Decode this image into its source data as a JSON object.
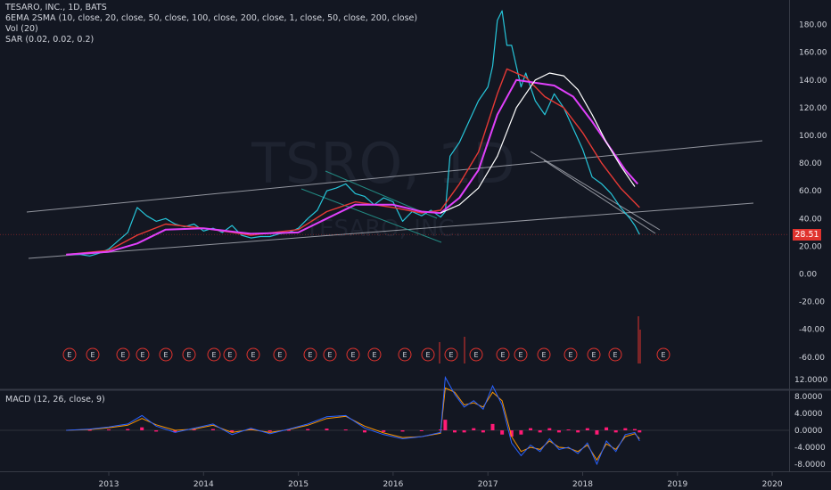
{
  "price_pane": {
    "title": "TESARO, INC., 1D, BATS",
    "indicators": [
      "6EMA 2SMA (10, close, 20, close, 50, close, 100, close, 200, close, 1, close, 50, close, 200, close)",
      "Vol (20)",
      "SAR (0.02, 0.02, 0.2)"
    ],
    "watermark_symbol": "TSRO, 1D",
    "watermark_company": "TESARO, INC.",
    "last_price_label": "28.51",
    "earnings_marker_label": "E"
  },
  "macd_pane": {
    "title": "MACD (12, 26, close, 9)"
  },
  "colors": {
    "background": "#131722",
    "price_line": "#26c6da",
    "ema_red": "#e53935",
    "ema_magenta": "#e040fb",
    "sma_white": "#ffffff",
    "trendline": "#b2b5be",
    "trendline_green": "#26a69a",
    "macd_hist": "#ff1a75",
    "macd_line": "#2962ff",
    "signal_line": "#ff9800",
    "earnings": "#e0332e"
  },
  "chart_data": [
    {
      "type": "line",
      "title": "TESARO, INC., 1D, BATS",
      "x_ticks": [
        "2013",
        "2014",
        "2015",
        "2016",
        "2017",
        "2018",
        "2019",
        "2020"
      ],
      "y_ticks": [
        "180.00",
        "160.00",
        "140.00",
        "120.00",
        "100.00",
        "80.00",
        "60.00",
        "40.00",
        "20.00",
        "0.00",
        "-20.00",
        "-40.00",
        "-60.00"
      ],
      "ylim": [
        -65,
        195
      ],
      "xlim": [
        2012.5,
        2020.15
      ],
      "series": [
        {
          "kind": "price",
          "x": [
            2012.55,
            2012.7,
            2012.8,
            2012.9,
            2013.0,
            2013.1,
            2013.2,
            2013.3,
            2013.4,
            2013.5,
            2013.6,
            2013.7,
            2013.8,
            2013.9,
            2014.0,
            2014.1,
            2014.2,
            2014.3,
            2014.4,
            2014.5,
            2014.6,
            2014.7,
            2014.8,
            2014.9,
            2015.0,
            2015.1,
            2015.2,
            2015.3,
            2015.4,
            2015.5,
            2015.6,
            2015.7,
            2015.8,
            2015.9,
            2016.0,
            2016.1,
            2016.2,
            2016.3,
            2016.4,
            2016.5,
            2016.55,
            2016.6,
            2016.7,
            2016.8,
            2016.9,
            2017.0,
            2017.05,
            2017.1,
            2017.15,
            2017.2,
            2017.25,
            2017.3,
            2017.35,
            2017.4,
            2017.5,
            2017.6,
            2017.7,
            2017.8,
            2017.9,
            2018.0,
            2018.1,
            2018.2,
            2018.3,
            2018.4,
            2018.5,
            2018.55,
            2018.6
          ],
          "y": [
            14,
            14,
            13,
            15,
            18,
            24,
            30,
            48,
            42,
            38,
            40,
            36,
            34,
            36,
            31,
            33,
            30,
            35,
            28,
            26,
            27,
            27,
            29,
            30,
            33,
            40,
            46,
            60,
            62,
            65,
            58,
            56,
            50,
            55,
            52,
            38,
            45,
            42,
            46,
            41,
            45,
            85,
            95,
            110,
            125,
            135,
            150,
            183,
            190,
            165,
            165,
            150,
            135,
            145,
            125,
            115,
            130,
            120,
            105,
            90,
            70,
            65,
            58,
            48,
            40,
            35,
            28.5
          ]
        },
        {
          "kind": "ema_red",
          "x": [
            2012.55,
            2013.0,
            2013.3,
            2013.6,
            2014.0,
            2014.5,
            2015.0,
            2015.3,
            2015.6,
            2016.0,
            2016.3,
            2016.5,
            2016.7,
            2016.9,
            2017.1,
            2017.2,
            2017.4,
            2017.6,
            2017.8,
            2018.0,
            2018.2,
            2018.4,
            2018.6
          ],
          "y": [
            14,
            17,
            28,
            36,
            33,
            28,
            32,
            45,
            52,
            48,
            44,
            46,
            65,
            88,
            130,
            148,
            142,
            128,
            120,
            102,
            80,
            62,
            48
          ]
        },
        {
          "kind": "ema_magenta",
          "x": [
            2012.55,
            2013.0,
            2013.3,
            2013.6,
            2014.0,
            2014.5,
            2015.0,
            2015.3,
            2015.6,
            2016.0,
            2016.3,
            2016.5,
            2016.7,
            2016.9,
            2017.1,
            2017.3,
            2017.5,
            2017.7,
            2017.9,
            2018.1,
            2018.3,
            2018.45,
            2018.58
          ],
          "y": [
            14,
            16,
            22,
            32,
            33,
            29,
            30,
            40,
            50,
            50,
            45,
            44,
            55,
            75,
            115,
            140,
            138,
            136,
            128,
            110,
            90,
            75,
            65
          ]
        },
        {
          "kind": "sma_white",
          "x": [
            2016.5,
            2016.7,
            2016.9,
            2017.1,
            2017.3,
            2017.5,
            2017.65,
            2017.8,
            2017.95,
            2018.1,
            2018.25,
            2018.4,
            2018.55
          ],
          "y": [
            44,
            50,
            62,
            85,
            120,
            140,
            145,
            143,
            133,
            115,
            95,
            78,
            63
          ]
        }
      ]
    },
    {
      "type": "bar",
      "title": "MACD (12, 26, close, 9)",
      "y_ticks": [
        "12.0000",
        "8.0000",
        "4.0000",
        "0.0000",
        "-4.0000",
        "-8.0000"
      ],
      "ylim": [
        -9.5,
        13
      ],
      "series": [
        {
          "kind": "macd_line",
          "x": [
            2012.55,
            2012.8,
            2013.0,
            2013.2,
            2013.35,
            2013.5,
            2013.7,
            2013.9,
            2014.1,
            2014.3,
            2014.5,
            2014.7,
            2014.9,
            2015.1,
            2015.3,
            2015.5,
            2015.7,
            2015.9,
            2016.1,
            2016.3,
            2016.5,
            2016.55,
            2016.65,
            2016.75,
            2016.85,
            2016.95,
            2017.05,
            2017.15,
            2017.25,
            2017.35,
            2017.45,
            2017.55,
            2017.65,
            2017.75,
            2017.85,
            2017.95,
            2018.05,
            2018.15,
            2018.25,
            2018.35,
            2018.45,
            2018.55,
            2018.6
          ],
          "y": [
            0,
            0.3,
            0.8,
            1.5,
            3.5,
            1.0,
            -0.5,
            0.5,
            1.5,
            -1.0,
            0.5,
            -0.8,
            0.3,
            1.5,
            3.2,
            3.5,
            0.5,
            -1.0,
            -2.0,
            -1.5,
            -0.5,
            12.5,
            8.5,
            5.5,
            7.0,
            5.0,
            10.5,
            6.0,
            -3.0,
            -6.0,
            -3.5,
            -5.0,
            -2.0,
            -4.5,
            -4.0,
            -5.5,
            -3.0,
            -8.0,
            -2.5,
            -5.0,
            -1.0,
            -0.5,
            -2.5
          ]
        },
        {
          "kind": "signal_line",
          "x": [
            2012.55,
            2012.8,
            2013.0,
            2013.2,
            2013.35,
            2013.5,
            2013.7,
            2013.9,
            2014.1,
            2014.3,
            2014.5,
            2014.7,
            2014.9,
            2015.1,
            2015.3,
            2015.5,
            2015.7,
            2015.9,
            2016.1,
            2016.3,
            2016.5,
            2016.55,
            2016.65,
            2016.75,
            2016.85,
            2016.95,
            2017.05,
            2017.15,
            2017.25,
            2017.35,
            2017.45,
            2017.55,
            2017.65,
            2017.75,
            2017.85,
            2017.95,
            2018.05,
            2018.15,
            2018.25,
            2018.35,
            2018.45,
            2018.55,
            2018.6
          ],
          "y": [
            0,
            0.2,
            0.6,
            1.2,
            2.8,
            1.3,
            0.0,
            0.3,
            1.2,
            -0.5,
            0.2,
            -0.5,
            0.2,
            1.2,
            2.8,
            3.3,
            1.0,
            -0.6,
            -1.7,
            -1.5,
            -0.7,
            10.0,
            9.0,
            6.0,
            6.5,
            5.5,
            9.0,
            7.0,
            -1.5,
            -5.0,
            -4.0,
            -4.5,
            -2.5,
            -4.0,
            -4.2,
            -5.0,
            -3.5,
            -7.0,
            -3.2,
            -4.5,
            -1.5,
            -0.8,
            -2.0
          ]
        },
        {
          "kind": "histogram",
          "x": [
            2012.8,
            2013.0,
            2013.2,
            2013.35,
            2013.5,
            2013.7,
            2013.9,
            2014.1,
            2014.3,
            2014.5,
            2014.7,
            2014.9,
            2015.1,
            2015.3,
            2015.5,
            2015.7,
            2015.9,
            2016.1,
            2016.3,
            2016.5,
            2016.55,
            2016.65,
            2016.75,
            2016.85,
            2016.95,
            2017.05,
            2017.15,
            2017.25,
            2017.35,
            2017.45,
            2017.55,
            2017.65,
            2017.75,
            2017.85,
            2017.95,
            2018.05,
            2018.15,
            2018.25,
            2018.35,
            2018.45,
            2018.55,
            2018.6
          ],
          "y": [
            0.1,
            0.2,
            0.3,
            0.7,
            -0.3,
            -0.5,
            0.2,
            0.3,
            -0.5,
            0.3,
            -0.3,
            0.1,
            0.3,
            0.4,
            0.2,
            -0.5,
            -0.4,
            -0.3,
            0.0,
            0.2,
            2.5,
            -0.5,
            -0.5,
            0.5,
            -0.5,
            1.5,
            -1.0,
            -1.5,
            -1.0,
            0.5,
            -0.5,
            0.5,
            -0.5,
            0.2,
            -0.5,
            0.5,
            -1.0,
            0.7,
            -0.5,
            0.5,
            0.3,
            -0.5
          ]
        }
      ]
    }
  ]
}
